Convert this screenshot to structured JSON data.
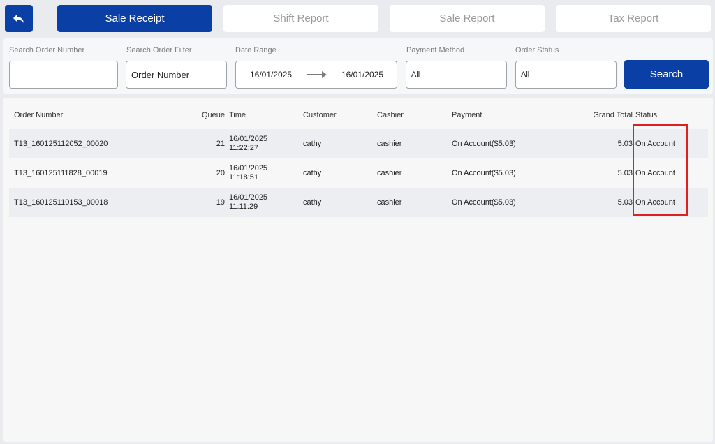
{
  "tabs": [
    {
      "label": "Sale Receipt",
      "active": true
    },
    {
      "label": "Shift Report",
      "active": false
    },
    {
      "label": "Sale Report",
      "active": false
    },
    {
      "label": "Tax Report",
      "active": false
    }
  ],
  "filters": {
    "order_number_label": "Search Order Number",
    "order_number_value": "",
    "order_filter_label": "Search Order Filter",
    "order_filter_value": "Order Number",
    "date_range_label": "Date Range",
    "date_from": "16/01/2025",
    "date_to": "16/01/2025",
    "payment_method_label": "Payment Method",
    "payment_method_value": "All",
    "order_status_label": "Order Status",
    "order_status_value": "All",
    "search_label": "Search"
  },
  "table": {
    "headers": {
      "order_number": "Order Number",
      "queue": "Queue",
      "time": "Time",
      "customer": "Customer",
      "cashier": "Cashier",
      "payment": "Payment",
      "grand_total": "Grand Total",
      "status": "Status"
    },
    "rows": [
      {
        "order_number": "T13_160125112052_00020",
        "queue": "21",
        "date": "16/01/2025",
        "time": "11:22:27",
        "customer": "cathy",
        "cashier": "cashier",
        "payment": "On Account($5.03)",
        "grand_total": "5.03",
        "status": "On Account"
      },
      {
        "order_number": "T13_160125111828_00019",
        "queue": "20",
        "date": "16/01/2025",
        "time": "11:18:51",
        "customer": "cathy",
        "cashier": "cashier",
        "payment": "On Account($5.03)",
        "grand_total": "5.03",
        "status": "On Account"
      },
      {
        "order_number": "T13_160125110153_00018",
        "queue": "19",
        "date": "16/01/2025",
        "time": "11:11:29",
        "customer": "cathy",
        "cashier": "cashier",
        "payment": "On Account($5.03)",
        "grand_total": "5.03",
        "status": "On Account"
      }
    ]
  },
  "icons": {
    "back": "back-arrow-icon",
    "date_arrow": "arrow-right-icon"
  },
  "colors": {
    "primary": "#0a3fa6",
    "highlight": "#e02020"
  }
}
